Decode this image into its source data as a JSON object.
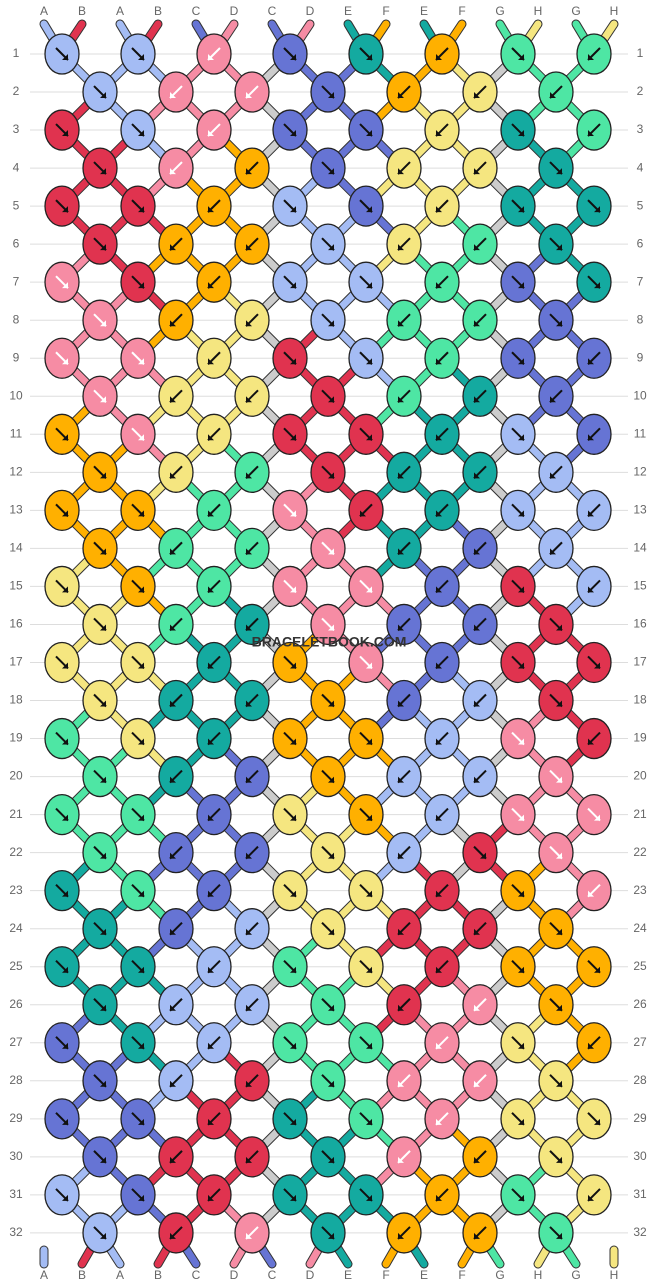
{
  "strings": {
    "top": [
      "A",
      "B",
      "A",
      "B",
      "C",
      "D",
      "C",
      "D",
      "E",
      "F",
      "E",
      "F",
      "G",
      "H",
      "G",
      "H"
    ],
    "bottom": [
      "A",
      "B",
      "A",
      "B",
      "C",
      "D",
      "C",
      "D",
      "E",
      "F",
      "E",
      "F",
      "G",
      "H",
      "G",
      "H"
    ]
  },
  "string_colors": {
    "A": "#a4bcf4",
    "B": "#e0334f",
    "C": "#6674d4",
    "D": "#f68ca4",
    "E": "#14aaa0",
    "F": "#ffb000",
    "G": "#4ee6a4",
    "H": "#f5e680"
  },
  "palette": {
    "a": "#a4bcf4",
    "b": "#e0334f",
    "c": "#6674d4",
    "d": "#f68ca4",
    "e": "#14aaa0",
    "f": "#ffb000",
    "g": "#4ee6a4",
    "h": "#f5e680"
  },
  "row_numbers": [
    1,
    2,
    3,
    4,
    5,
    6,
    7,
    8,
    9,
    10,
    11,
    12,
    13,
    14,
    15,
    16,
    17,
    18,
    19,
    20,
    21,
    22,
    23,
    24,
    25,
    26,
    27,
    28,
    29,
    30,
    31,
    32
  ],
  "watermark": "BRACELETBOOK.COM",
  "knots": [
    [
      "aR",
      "aR",
      "dL",
      "cR",
      "eR",
      "fL",
      "gR",
      "gL"
    ],
    [
      "aR",
      "dL",
      "dL",
      "cR",
      "fL",
      "hL",
      "gL"
    ],
    [
      "bR",
      "aR",
      "dL",
      "cR",
      "cR",
      "hL",
      "eR",
      "gL"
    ],
    [
      "bR",
      "dL",
      "fL",
      "cR",
      "hL",
      "hL",
      "eR"
    ],
    [
      "bR",
      "bR",
      "fL",
      "aR",
      "cR",
      "hL",
      "eR",
      "eR"
    ],
    [
      "bR",
      "fL",
      "fL",
      "aR",
      "hL",
      "gL",
      "eR"
    ],
    [
      "dR",
      "bR",
      "fL",
      "aR",
      "aR",
      "gL",
      "cR",
      "eR"
    ],
    [
      "dR",
      "fL",
      "hL",
      "aR",
      "gL",
      "gL",
      "cR"
    ],
    [
      "dR",
      "dR",
      "hL",
      "bR",
      "aR",
      "gL",
      "cR",
      "cL"
    ],
    [
      "dR",
      "hL",
      "hL",
      "bR",
      "gL",
      "eL",
      "cL"
    ],
    [
      "fR",
      "dR",
      "hL",
      "bR",
      "bR",
      "eL",
      "aR",
      "cL"
    ],
    [
      "fR",
      "hL",
      "gL",
      "bR",
      "eL",
      "eL",
      "aL"
    ],
    [
      "fR",
      "fR",
      "gL",
      "dR",
      "bL",
      "eL",
      "aR",
      "aL"
    ],
    [
      "fR",
      "gL",
      "gL",
      "dR",
      "eL",
      "cL",
      "aL"
    ],
    [
      "hR",
      "fR",
      "gL",
      "dR",
      "dR",
      "cL",
      "bR",
      "aL"
    ],
    [
      "hR",
      "gL",
      "eL",
      "dR",
      "cL",
      "cL",
      "bR"
    ],
    [
      "hR",
      "hR",
      "eL",
      "fR",
      "dR",
      "cL",
      "bR",
      "bR"
    ],
    [
      "hR",
      "eL",
      "eL",
      "fR",
      "cL",
      "aL",
      "bR"
    ],
    [
      "gR",
      "hR",
      "eL",
      "fR",
      "fR",
      "aL",
      "dR",
      "bL"
    ],
    [
      "gR",
      "eL",
      "cL",
      "fR",
      "aL",
      "aL",
      "dR"
    ],
    [
      "gR",
      "gR",
      "cL",
      "hR",
      "fR",
      "aL",
      "dR",
      "dR"
    ],
    [
      "gR",
      "cL",
      "cL",
      "hR",
      "aL",
      "bR",
      "dR"
    ],
    [
      "eR",
      "gR",
      "cL",
      "hR",
      "hR",
      "bL",
      "fR",
      "dL"
    ],
    [
      "eR",
      "cL",
      "aL",
      "hR",
      "bL",
      "bL",
      "fR"
    ],
    [
      "eR",
      "eR",
      "aL",
      "gR",
      "hR",
      "bL",
      "fR",
      "fR"
    ],
    [
      "eR",
      "aL",
      "aL",
      "gR",
      "bL",
      "dL",
      "fR"
    ],
    [
      "cR",
      "eR",
      "aL",
      "gR",
      "gR",
      "dL",
      "hR",
      "fL"
    ],
    [
      "cR",
      "aL",
      "bL",
      "gR",
      "dL",
      "dL",
      "hR"
    ],
    [
      "cR",
      "cR",
      "bL",
      "eR",
      "gR",
      "dL",
      "hR",
      "hR"
    ],
    [
      "cR",
      "bL",
      "bL",
      "eR",
      "dL",
      "fL",
      "hR"
    ],
    [
      "aR",
      "cR",
      "bL",
      "eR",
      "eR",
      "fL",
      "gR",
      "hL"
    ],
    [
      "aR",
      "bL",
      "dL",
      "eR",
      "fL",
      "fL",
      "gR"
    ]
  ]
}
